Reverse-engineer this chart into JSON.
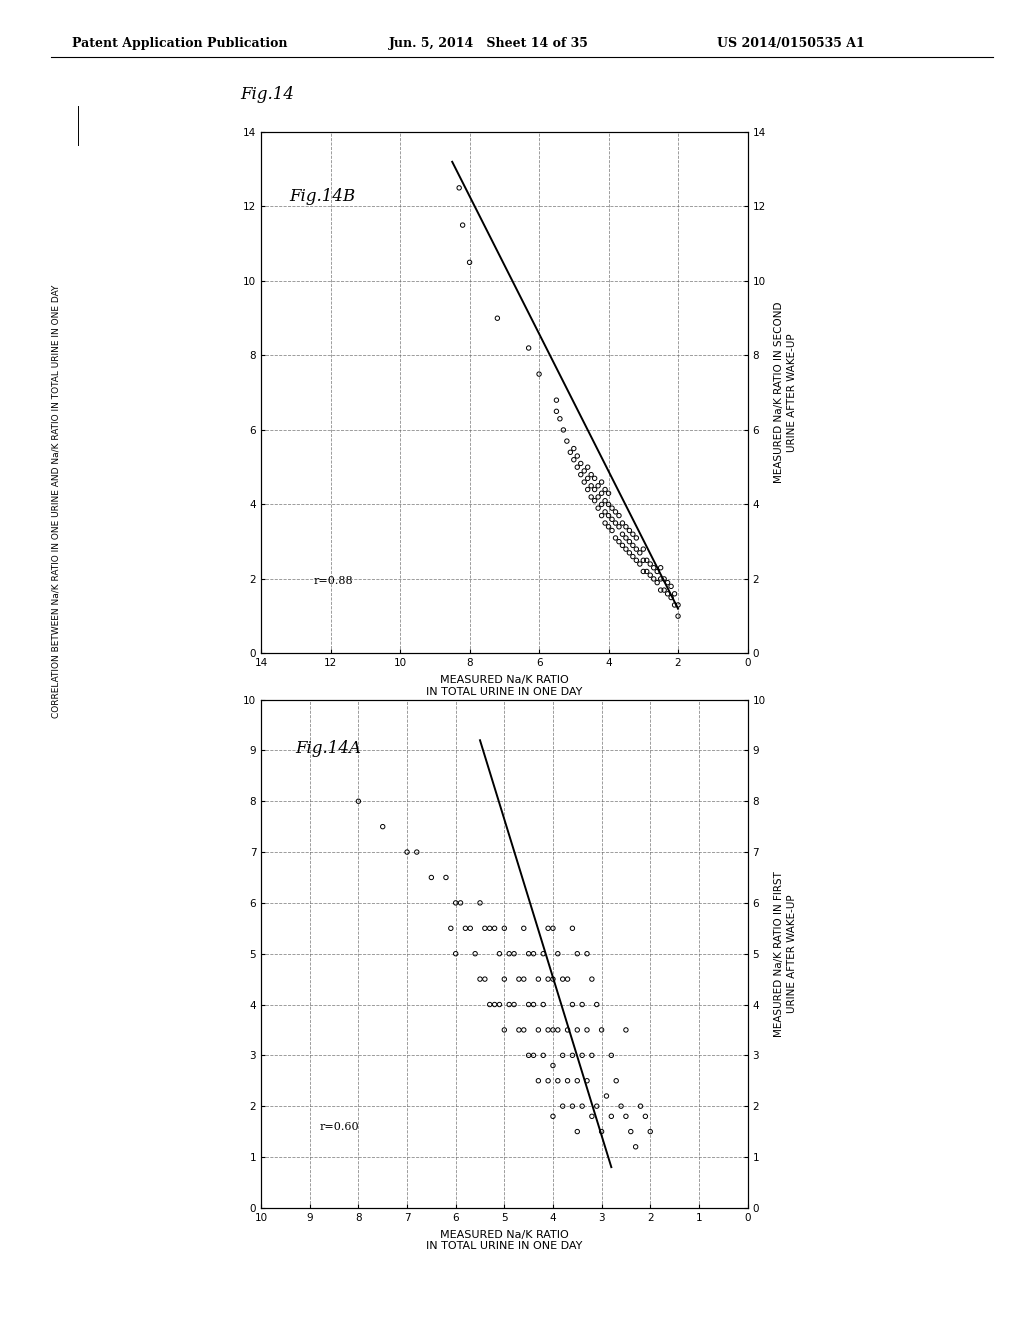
{
  "header_left": "Patent Application Publication",
  "header_mid": "Jun. 5, 2014   Sheet 14 of 35",
  "header_right": "US 2014/0150535 A1",
  "fig14_label": "Fig.14",
  "side_label_line1": "CORRELATION BETWEEN Na/K RATIO IN ONE URINE AND Na/K RATIO IN TOTAL URINE IN ONE DAY",
  "plot_top": {
    "fig_label": "Fig.14B",
    "r_value": "r=0.88",
    "xlabel_line1": "MEASURED Na/K RATIO",
    "xlabel_line2": "IN TOTAL URINE IN ONE DAY",
    "ylabel_line1": "MEASURED Na/K RATIO IN SECOND",
    "ylabel_line2": "URINE AFTER WAKE-UP",
    "xlim": [
      0,
      14
    ],
    "ylim": [
      0,
      14
    ],
    "xticks": [
      0,
      2,
      4,
      6,
      8,
      10,
      12,
      14
    ],
    "yticks": [
      0,
      2,
      4,
      6,
      8,
      10,
      12,
      14
    ],
    "line_x": [
      2.0,
      8.5
    ],
    "line_y": [
      1.2,
      13.2
    ],
    "scatter_x": [
      2.0,
      2.0,
      2.1,
      2.1,
      2.2,
      2.2,
      2.3,
      2.3,
      2.4,
      2.4,
      2.5,
      2.5,
      2.5,
      2.6,
      2.6,
      2.7,
      2.7,
      2.8,
      2.8,
      2.9,
      2.9,
      3.0,
      3.0,
      3.0,
      3.1,
      3.1,
      3.2,
      3.2,
      3.2,
      3.3,
      3.3,
      3.3,
      3.4,
      3.4,
      3.4,
      3.5,
      3.5,
      3.5,
      3.6,
      3.6,
      3.6,
      3.7,
      3.7,
      3.7,
      3.8,
      3.8,
      3.8,
      3.9,
      3.9,
      3.9,
      4.0,
      4.0,
      4.0,
      4.0,
      4.1,
      4.1,
      4.1,
      4.1,
      4.2,
      4.2,
      4.2,
      4.2,
      4.3,
      4.3,
      4.3,
      4.4,
      4.4,
      4.4,
      4.5,
      4.5,
      4.5,
      4.6,
      4.6,
      4.6,
      4.7,
      4.7,
      4.8,
      4.8,
      4.9,
      4.9,
      5.0,
      5.0,
      5.1,
      5.2,
      5.3,
      5.4,
      5.5,
      5.5,
      6.0,
      6.3,
      7.2,
      8.0,
      8.2,
      8.3
    ],
    "scatter_y": [
      1.0,
      1.3,
      1.3,
      1.6,
      1.5,
      1.8,
      1.6,
      1.9,
      1.7,
      2.0,
      1.7,
      2.0,
      2.3,
      1.9,
      2.2,
      2.0,
      2.3,
      2.1,
      2.4,
      2.2,
      2.5,
      2.2,
      2.5,
      2.8,
      2.4,
      2.7,
      2.5,
      2.8,
      3.1,
      2.6,
      2.9,
      3.2,
      2.7,
      3.0,
      3.3,
      2.8,
      3.1,
      3.4,
      2.9,
      3.2,
      3.5,
      3.0,
      3.4,
      3.7,
      3.1,
      3.5,
      3.8,
      3.3,
      3.6,
      3.9,
      3.4,
      3.7,
      4.0,
      4.3,
      3.5,
      3.8,
      4.1,
      4.4,
      3.7,
      4.0,
      4.3,
      4.6,
      3.9,
      4.2,
      4.5,
      4.1,
      4.4,
      4.7,
      4.2,
      4.5,
      4.8,
      4.4,
      4.7,
      5.0,
      4.6,
      4.9,
      4.8,
      5.1,
      5.0,
      5.3,
      5.2,
      5.5,
      5.4,
      5.7,
      6.0,
      6.3,
      6.5,
      6.8,
      7.5,
      8.2,
      9.0,
      10.5,
      11.5,
      12.5
    ]
  },
  "plot_bottom": {
    "fig_label": "Fig.14A",
    "r_value": "r=0.60",
    "xlabel_line1": "MEASURED Na/K RATIO",
    "xlabel_line2": "IN TOTAL URINE IN ONE DAY",
    "ylabel_line1": "MEASURED Na/K RATIO IN FIRST",
    "ylabel_line2": "URINE AFTER WAKE-UP",
    "xlim": [
      0,
      10
    ],
    "ylim": [
      0,
      10
    ],
    "xticks": [
      0,
      1,
      2,
      3,
      4,
      5,
      6,
      7,
      8,
      9,
      10
    ],
    "yticks": [
      0,
      1,
      2,
      3,
      4,
      5,
      6,
      7,
      8,
      9,
      10
    ],
    "line_x": [
      2.8,
      5.5
    ],
    "line_y": [
      0.8,
      9.2
    ],
    "scatter_x": [
      2.0,
      2.1,
      2.2,
      2.3,
      2.4,
      2.5,
      2.5,
      2.6,
      2.7,
      2.8,
      2.8,
      2.9,
      3.0,
      3.0,
      3.1,
      3.1,
      3.2,
      3.2,
      3.2,
      3.3,
      3.3,
      3.3,
      3.4,
      3.4,
      3.4,
      3.5,
      3.5,
      3.5,
      3.5,
      3.6,
      3.6,
      3.6,
      3.6,
      3.7,
      3.7,
      3.7,
      3.8,
      3.8,
      3.8,
      3.9,
      3.9,
      3.9,
      4.0,
      4.0,
      4.0,
      4.0,
      4.0,
      4.1,
      4.1,
      4.1,
      4.1,
      4.2,
      4.2,
      4.2,
      4.3,
      4.3,
      4.3,
      4.4,
      4.4,
      4.4,
      4.5,
      4.5,
      4.5,
      4.6,
      4.6,
      4.6,
      4.7,
      4.7,
      4.8,
      4.8,
      4.9,
      4.9,
      5.0,
      5.0,
      5.0,
      5.1,
      5.1,
      5.2,
      5.2,
      5.3,
      5.3,
      5.4,
      5.4,
      5.5,
      5.5,
      5.6,
      5.7,
      5.8,
      5.9,
      6.0,
      6.0,
      6.1,
      6.2,
      6.5,
      6.8,
      7.0,
      7.5,
      8.0
    ],
    "scatter_y": [
      1.5,
      1.8,
      2.0,
      1.2,
      1.5,
      1.8,
      3.5,
      2.0,
      2.5,
      1.8,
      3.0,
      2.2,
      1.5,
      3.5,
      2.0,
      4.0,
      1.8,
      3.0,
      4.5,
      2.5,
      3.5,
      5.0,
      2.0,
      3.0,
      4.0,
      1.5,
      2.5,
      3.5,
      5.0,
      2.0,
      3.0,
      4.0,
      5.5,
      2.5,
      3.5,
      4.5,
      2.0,
      3.0,
      4.5,
      2.5,
      3.5,
      5.0,
      1.8,
      2.8,
      3.5,
      4.5,
      5.5,
      2.5,
      3.5,
      4.5,
      5.5,
      3.0,
      4.0,
      5.0,
      2.5,
      3.5,
      4.5,
      3.0,
      4.0,
      5.0,
      3.0,
      4.0,
      5.0,
      3.5,
      4.5,
      5.5,
      3.5,
      4.5,
      4.0,
      5.0,
      4.0,
      5.0,
      3.5,
      4.5,
      5.5,
      4.0,
      5.0,
      4.0,
      5.5,
      4.0,
      5.5,
      4.5,
      5.5,
      4.5,
      6.0,
      5.0,
      5.5,
      5.5,
      6.0,
      5.0,
      6.0,
      5.5,
      6.5,
      6.5,
      7.0,
      7.0,
      7.5,
      8.0
    ]
  },
  "background_color": "#ffffff",
  "grid_color": "#666666",
  "grid_linestyle": "--"
}
